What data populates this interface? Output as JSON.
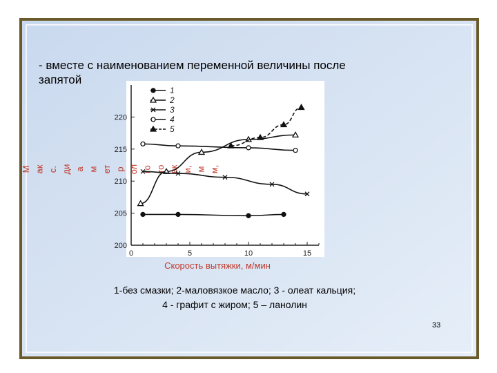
{
  "slide": {
    "text_lines": [
      "- вместе с наименованием переменной величины после",
      "запятой"
    ],
    "caption_lines": [
      "1-без смазки; 2-маловязкое масло; 3 - олеат кальция;",
      "4 - графит с жиром; 5 – ланолин"
    ],
    "page_number": "33"
  },
  "chart_data": {
    "type": "line",
    "ylabel_fragments": [
      "М",
      "ак",
      "с.",
      "ди",
      "а",
      "м",
      "ет",
      "р",
      "ол",
      "го",
      "то",
      "вк",
      "и,",
      "м",
      "м,"
    ],
    "xlabel": "Скорость вытяжки, м/мин",
    "xlim": [
      0,
      16
    ],
    "xticks": [
      0,
      5,
      10,
      15
    ],
    "ylim": [
      200,
      225
    ],
    "yticks": [
      200,
      205,
      210,
      215,
      220
    ],
    "legend": "top-left",
    "series": [
      {
        "name": "1",
        "color": "#111111",
        "marker": "filled-circle",
        "dashed": false,
        "x": [
          1,
          4,
          10,
          13
        ],
        "values": [
          204.8,
          204.8,
          204.6,
          204.8
        ]
      },
      {
        "name": "2",
        "color": "#111111",
        "marker": "open-triangle",
        "dashed": false,
        "x": [
          0.8,
          3,
          6,
          10,
          14
        ],
        "values": [
          206.5,
          211.5,
          214.5,
          216.5,
          217.2
        ]
      },
      {
        "name": "3",
        "color": "#111111",
        "marker": "cross",
        "dashed": false,
        "x": [
          1,
          4,
          8,
          12,
          15
        ],
        "values": [
          211.5,
          211.2,
          210.6,
          209.5,
          208
        ]
      },
      {
        "name": "4",
        "color": "#111111",
        "marker": "open-circle",
        "dashed": false,
        "x": [
          1,
          4,
          10,
          14
        ],
        "values": [
          215.8,
          215.5,
          215.2,
          214.8
        ]
      },
      {
        "name": "5",
        "color": "#111111",
        "marker": "filled-triangle",
        "dashed": true,
        "x": [
          8.5,
          11,
          13,
          14.5
        ],
        "values": [
          215.5,
          216.8,
          218.8,
          221.5
        ]
      }
    ]
  }
}
